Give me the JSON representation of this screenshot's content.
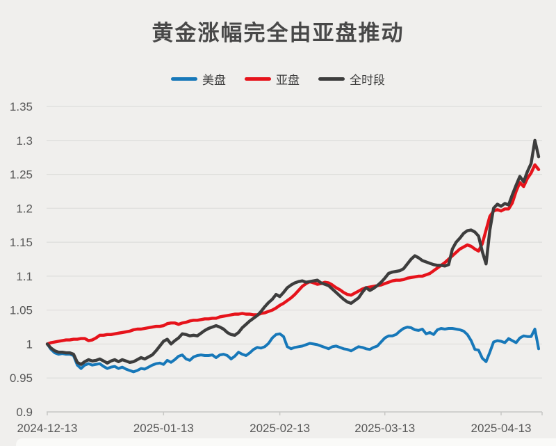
{
  "title": "黄金涨幅完全由亚盘推动",
  "legend": {
    "items": [
      {
        "label": "美盘"
      },
      {
        "label": "亚盘"
      },
      {
        "label": "全时段"
      }
    ]
  },
  "colors": {
    "background": "#f0efed",
    "grid": "#dddddb",
    "axis": "#c7c7c5",
    "tick_text": "#585858",
    "title_text": "#484848",
    "legend_text": "#3f3f3f"
  },
  "chart_data": {
    "type": "line",
    "title": "黄金涨幅完全由亚盘推动",
    "xlabel": "",
    "ylabel": "",
    "grid": true,
    "legend_position": "top-center",
    "y_axis": {
      "min": 0.9,
      "max": 1.35,
      "tick_step": 0.05,
      "tick_labels": [
        "1.35",
        "1.3",
        "1.25",
        "1.2",
        "1.15",
        "1.1",
        "1.05",
        "1",
        "0.95",
        "0.9"
      ],
      "tick_values": [
        1.35,
        1.3,
        1.25,
        1.2,
        1.15,
        1.1,
        1.05,
        1.0,
        0.95,
        0.9
      ]
    },
    "x_axis": {
      "tick_labels": [
        "2024-12-13",
        "2025-01-13",
        "2025-02-13",
        "2025-03-13",
        "2025-04-13"
      ],
      "tick_day_offsets": [
        0,
        31,
        62,
        90,
        121
      ],
      "days_total": 131,
      "unit": "calendar days since 2024-12-13"
    },
    "series": [
      {
        "name": "美盘",
        "color": "#1778b9",
        "values": [
          1.0,
          0.992,
          0.987,
          0.985,
          0.986,
          0.985,
          0.985,
          0.983,
          0.969,
          0.964,
          0.969,
          0.971,
          0.969,
          0.97,
          0.971,
          0.967,
          0.964,
          0.966,
          0.967,
          0.964,
          0.966,
          0.963,
          0.961,
          0.959,
          0.961,
          0.964,
          0.963,
          0.966,
          0.969,
          0.971,
          0.972,
          0.97,
          0.976,
          0.973,
          0.977,
          0.982,
          0.984,
          0.978,
          0.976,
          0.981,
          0.983,
          0.984,
          0.983,
          0.983,
          0.984,
          0.98,
          0.984,
          0.985,
          0.983,
          0.978,
          0.982,
          0.988,
          0.985,
          0.983,
          0.987,
          0.992,
          0.995,
          0.994,
          0.996,
          1.001,
          1.009,
          1.014,
          1.015,
          1.011,
          0.996,
          0.993,
          0.995,
          0.996,
          0.997,
          0.999,
          1.001,
          1.0,
          0.999,
          0.997,
          0.995,
          0.993,
          0.996,
          0.997,
          0.995,
          0.993,
          0.992,
          0.99,
          0.993,
          0.996,
          0.995,
          0.993,
          0.992,
          0.995,
          0.997,
          1.003,
          1.009,
          1.012,
          1.012,
          1.014,
          1.019,
          1.023,
          1.025,
          1.024,
          1.021,
          1.02,
          1.022,
          1.015,
          1.017,
          1.014,
          1.021,
          1.023,
          1.022,
          1.023,
          1.023,
          1.022,
          1.021,
          1.019,
          1.014,
          1.005,
          0.992,
          0.991,
          0.979,
          0.974,
          0.988,
          1.003,
          1.005,
          1.004,
          1.002,
          1.008,
          1.005,
          1.002,
          1.009,
          1.012,
          1.011,
          1.011,
          1.022,
          0.993
        ]
      },
      {
        "name": "亚盘",
        "color": "#e6131b",
        "values": [
          1.0,
          1.002,
          1.003,
          1.004,
          1.005,
          1.006,
          1.006,
          1.007,
          1.007,
          1.008,
          1.008,
          1.005,
          1.006,
          1.009,
          1.013,
          1.013,
          1.014,
          1.014,
          1.015,
          1.016,
          1.017,
          1.018,
          1.019,
          1.021,
          1.022,
          1.022,
          1.023,
          1.024,
          1.025,
          1.026,
          1.026,
          1.027,
          1.03,
          1.031,
          1.031,
          1.029,
          1.031,
          1.032,
          1.034,
          1.035,
          1.035,
          1.036,
          1.037,
          1.037,
          1.038,
          1.038,
          1.04,
          1.041,
          1.042,
          1.043,
          1.044,
          1.044,
          1.045,
          1.044,
          1.044,
          1.043,
          1.043,
          1.045,
          1.046,
          1.048,
          1.05,
          1.053,
          1.057,
          1.06,
          1.064,
          1.068,
          1.073,
          1.079,
          1.085,
          1.089,
          1.092,
          1.09,
          1.088,
          1.089,
          1.091,
          1.09,
          1.087,
          1.083,
          1.08,
          1.076,
          1.073,
          1.072,
          1.075,
          1.078,
          1.081,
          1.083,
          1.084,
          1.085,
          1.086,
          1.087,
          1.089,
          1.091,
          1.093,
          1.094,
          1.094,
          1.095,
          1.097,
          1.098,
          1.099,
          1.1,
          1.1,
          1.102,
          1.104,
          1.108,
          1.112,
          1.116,
          1.12,
          1.125,
          1.13,
          1.135,
          1.14,
          1.143,
          1.146,
          1.144,
          1.14,
          1.137,
          1.148,
          1.168,
          1.188,
          1.196,
          1.198,
          1.196,
          1.199,
          1.199,
          1.208,
          1.225,
          1.238,
          1.232,
          1.244,
          1.252,
          1.264,
          1.257
        ]
      },
      {
        "name": "全时段",
        "color": "#3d3d3d",
        "values": [
          1.0,
          0.994,
          0.99,
          0.988,
          0.988,
          0.987,
          0.987,
          0.985,
          0.973,
          0.97,
          0.974,
          0.977,
          0.975,
          0.976,
          0.978,
          0.975,
          0.972,
          0.975,
          0.977,
          0.974,
          0.977,
          0.975,
          0.973,
          0.974,
          0.977,
          0.98,
          0.978,
          0.981,
          0.984,
          0.99,
          0.997,
          1.004,
          1.007,
          1.0,
          1.005,
          1.009,
          1.015,
          1.014,
          1.012,
          1.013,
          1.012,
          1.016,
          1.02,
          1.023,
          1.025,
          1.027,
          1.025,
          1.022,
          1.017,
          1.014,
          1.013,
          1.017,
          1.024,
          1.029,
          1.034,
          1.038,
          1.042,
          1.048,
          1.055,
          1.061,
          1.066,
          1.073,
          1.07,
          1.076,
          1.083,
          1.087,
          1.09,
          1.092,
          1.093,
          1.091,
          1.092,
          1.093,
          1.094,
          1.09,
          1.088,
          1.086,
          1.081,
          1.076,
          1.071,
          1.066,
          1.062,
          1.06,
          1.064,
          1.068,
          1.076,
          1.083,
          1.079,
          1.082,
          1.086,
          1.091,
          1.097,
          1.104,
          1.106,
          1.107,
          1.108,
          1.111,
          1.118,
          1.125,
          1.13,
          1.127,
          1.123,
          1.121,
          1.119,
          1.117,
          1.116,
          1.116,
          1.115,
          1.117,
          1.14,
          1.15,
          1.156,
          1.163,
          1.167,
          1.168,
          1.165,
          1.159,
          1.136,
          1.118,
          1.168,
          1.2,
          1.206,
          1.203,
          1.207,
          1.205,
          1.22,
          1.234,
          1.247,
          1.239,
          1.254,
          1.266,
          1.3,
          1.276
        ]
      }
    ]
  }
}
